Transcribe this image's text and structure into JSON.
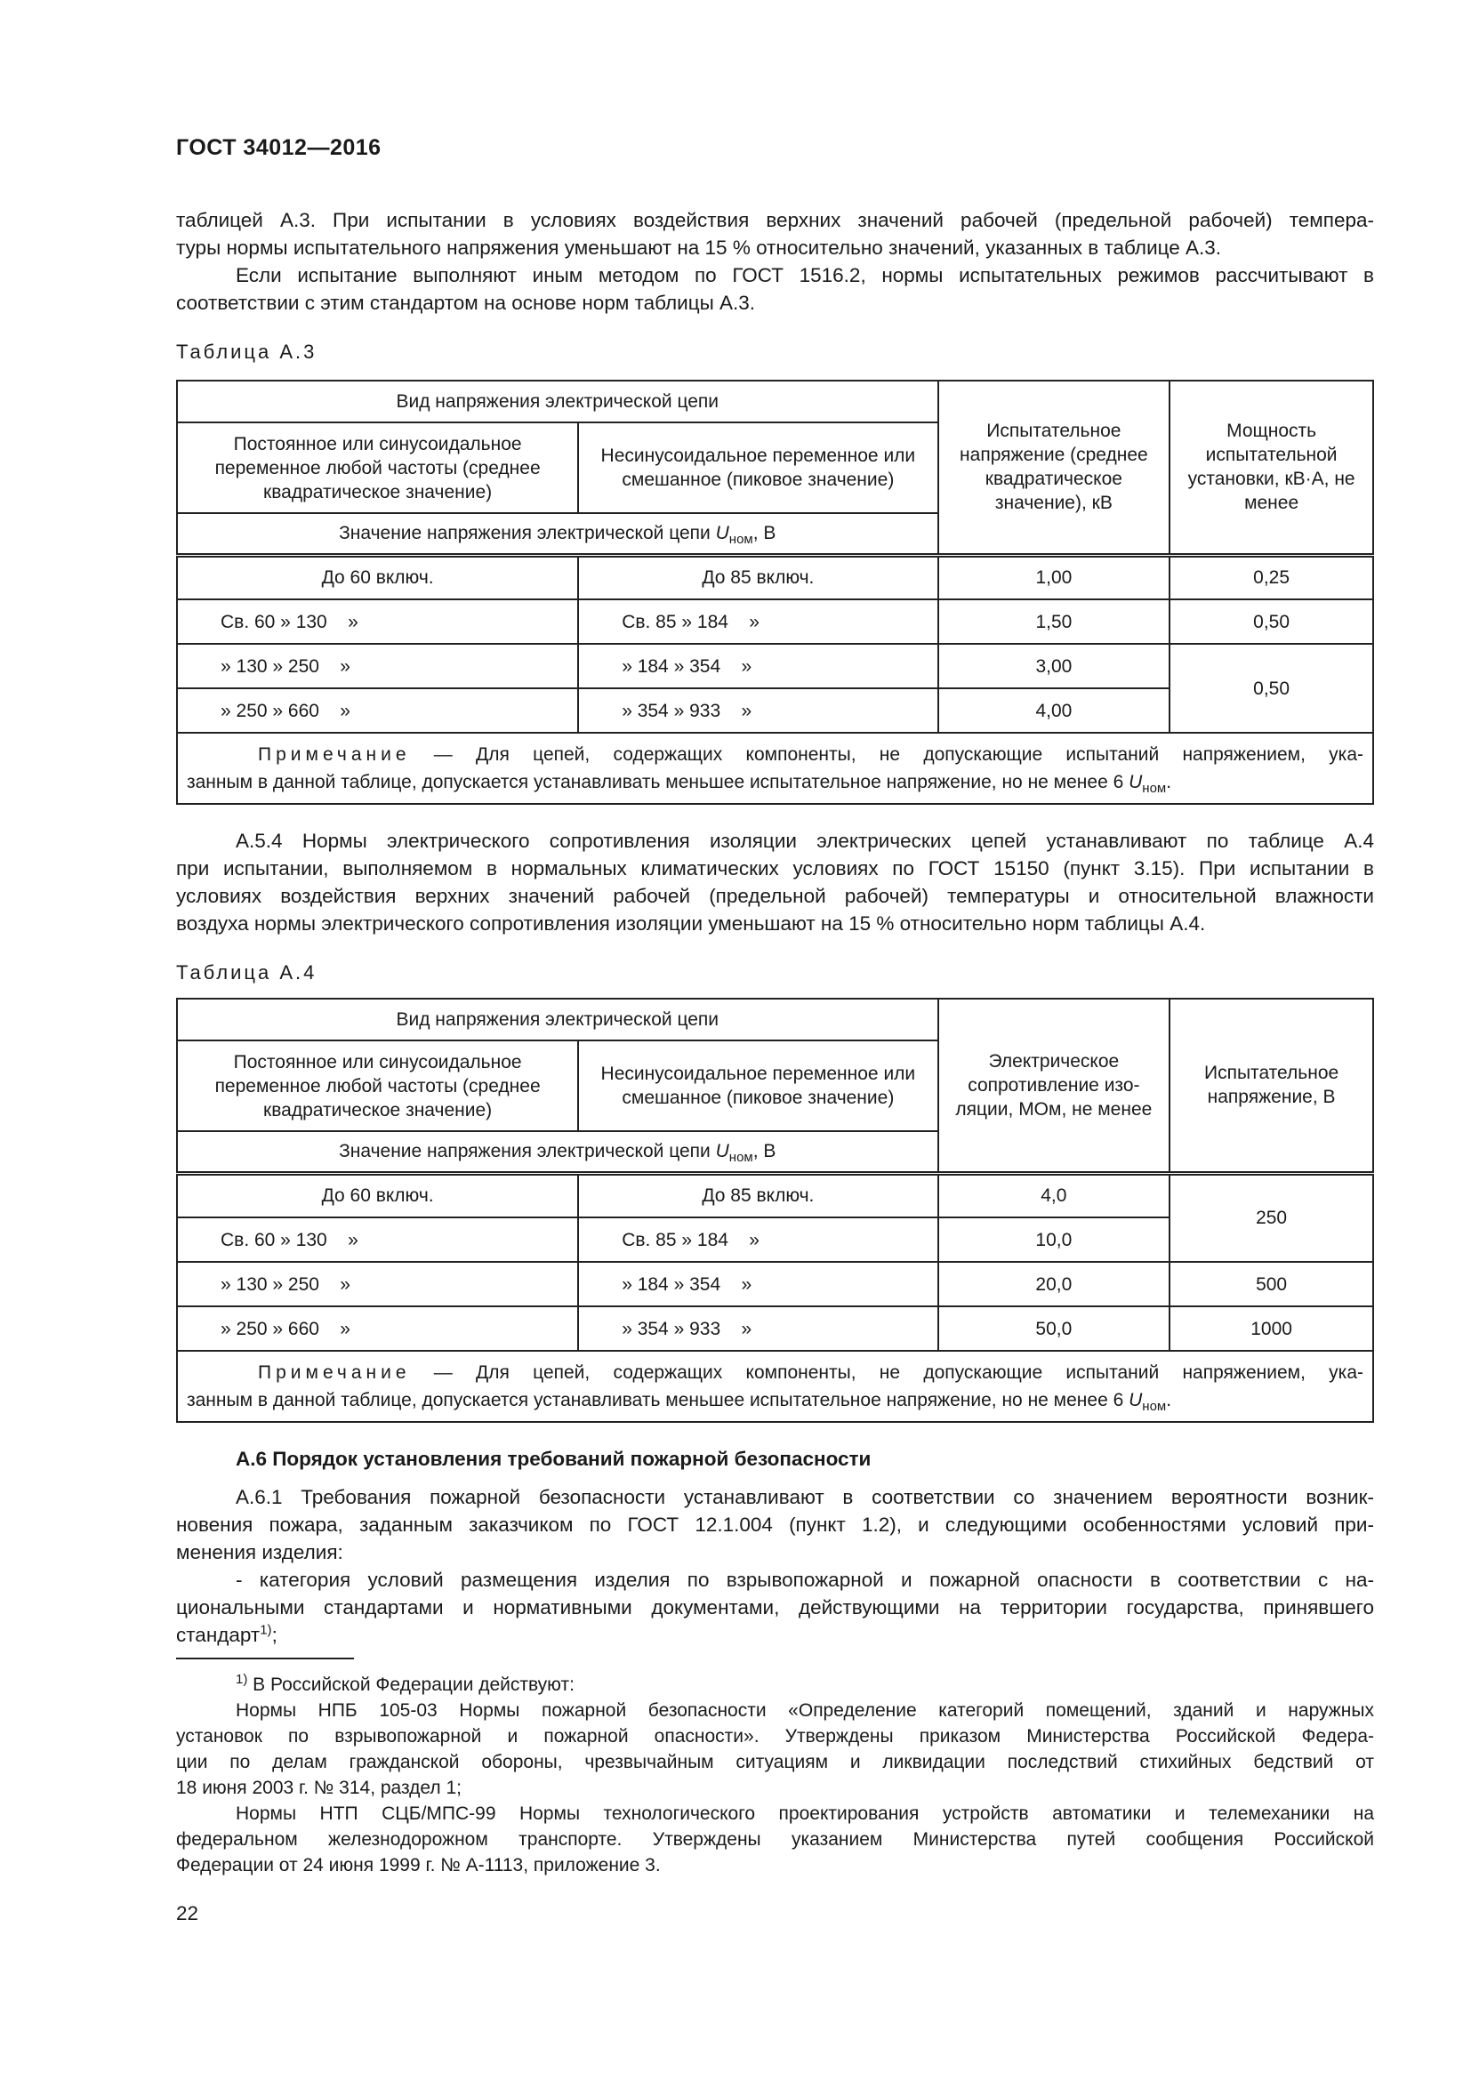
{
  "header": {
    "title": "ГОСТ 34012—2016"
  },
  "intro": {
    "lines": [
      "таблицей А.3. При испытании в условиях воздействия верхних значений рабочей (предельной рабочей) темпера-",
      "туры нормы испытательного напряжения уменьшают на 15 % относительно значений, указанных в таблице А.3.",
      "Если испытание выполняют иным методом по ГОСТ 1516.2, нормы испытательных режимов рассчитывают в",
      "соответствии с этим стандартом на основе норм таблицы А.3."
    ]
  },
  "table_a3": {
    "caption": "Таблица А.3",
    "group": "Вид напряжения электрической цепи",
    "col1": "Постоянное или синусоидальное переменное любой частоты (среднее квадратическое значение)",
    "col2": "Несинусоидальное переменное или смешанное (пиковое значение)",
    "col3": "Испытательное напряжение (среднее квадратическое значение), кВ",
    "col4": "Мощность испытательной установки, кВ·А, не менее",
    "unit": {
      "prefix": "Значение напряжения электрической цепи ",
      "symbol": "U",
      "sub": "ном",
      "suffix": ", В"
    },
    "rows": [
      {
        "c1": "До 60 включ.",
        "c2": "До  85 включ.",
        "c3": "1,00",
        "c4": "0,25"
      },
      {
        "c1": "Св. 60 » 130    »",
        "c2": "Св. 85 » 184    »",
        "c3": "1,50",
        "c4": "0,50"
      },
      {
        "c1": "» 130 » 250    »",
        "c2": "» 184 » 354    »",
        "c3": "3,00",
        "c4": "0,50"
      },
      {
        "c1": "» 250 » 660    »",
        "c2": "» 354 » 933    »",
        "c3": "4,00"
      }
    ],
    "note": {
      "label": "Примечание",
      "line1": " — Для цепей, содержащих компоненты, не допускающие испытаний напряжением, ука-",
      "line2": "занным в данной таблице, допускается устанавливать меньшее испытательное напряжение, но не менее 6 ",
      "symbol": "U",
      "sub": "ном",
      "end": "."
    }
  },
  "section_a54": {
    "lines": [
      "А.5.4 Нормы электрического сопротивления изоляции электрических цепей устанавливают по таблице А.4",
      "при испытании, выполняемом в нормальных климатических условиях по ГОСТ 15150 (пункт 3.15). При испытании в",
      "условиях воздействия верхних значений рабочей (предельной рабочей) температуры и относительной влажности",
      "воздуха нормы электрического сопротивления изоляции уменьшают на 15 % относительно норм таблицы А.4."
    ]
  },
  "table_a4": {
    "caption": "Таблица А.4",
    "group": "Вид напряжения электрической цепи",
    "col1": "Постоянное или синусоидальное переменное любой частоты (среднее квадратическое значение)",
    "col2": "Несинусоидальное переменное или смешанное (пиковое значение)",
    "col3": "Электрическое сопротивление изо-ляции, МОм, не менее",
    "col4": "Испытательное напряжение, В",
    "unit": {
      "prefix": "Значение напряжения электрической цепи ",
      "symbol": "U",
      "sub": "ном",
      "suffix": ", В"
    },
    "rows": [
      {
        "c1": "До 60 включ.",
        "c2": "До  85 включ.",
        "c3": "4,0",
        "c4": "250"
      },
      {
        "c1": "Св. 60 » 130    »",
        "c2": "Св. 85 » 184    »",
        "c3": "10,0"
      },
      {
        "c1": "» 130 » 250    »",
        "c2": "» 184 » 354    »",
        "c3": "20,0",
        "c4": "500"
      },
      {
        "c1": "» 250 » 660    »",
        "c2": "» 354 » 933    »",
        "c3": "50,0",
        "c4": "1000"
      }
    ],
    "note": {
      "label": "Примечание",
      "line1": " — Для цепей, содержащих компоненты, не допускающие испытаний напряжением, ука-",
      "line2": "занным в данной таблице, допускается устанавливать меньшее испытательное напряжение, но не менее 6 ",
      "symbol": "U",
      "sub": "ном",
      "end": "."
    }
  },
  "section_a6": {
    "heading": "А.6 Порядок установления требований пожарной безопасности",
    "lines": [
      "А.6.1 Требования пожарной безопасности устанавливают в соответствии со значением вероятности возник-",
      "новения пожара, заданным заказчиком по ГОСТ 12.1.004 (пункт 1.2), и следующими особенностями условий при-",
      "менения изделия:",
      "- категория условий размещения изделия по взрывопожарной и пожарной опасности в соответствии с на-",
      "циональными стандартами и нормативными документами, действующими на территории государства, принявшего"
    ],
    "last_line": "стандарт",
    "last_sup": "1)",
    "last_end": ";"
  },
  "footnote": {
    "mark": "1)",
    "intro": " В Российской Федерации действуют:",
    "lines": [
      "Нормы НПБ 105-03 Нормы пожарной безопасности «Определение категорий помещений, зданий и наружных",
      "установок по взрывопожарной и пожарной опасности». Утверждены приказом Министерства Российской Федера-",
      "ции по делам гражданской обороны, чрезвычайным ситуациям и ликвидации последствий стихийных бедствий от",
      "18 июня 2003 г. № 314, раздел 1;",
      "Нормы НТП СЦБ/МПС-99 Нормы технологического проектирования устройств автоматики и телемеханики на",
      "федеральном железнодорожном транспорте. Утверждены указанием Министерства путей сообщения Российской",
      "Федерации от 24 июня 1999 г. № А-1113, приложение 3."
    ]
  },
  "page_number": "22"
}
